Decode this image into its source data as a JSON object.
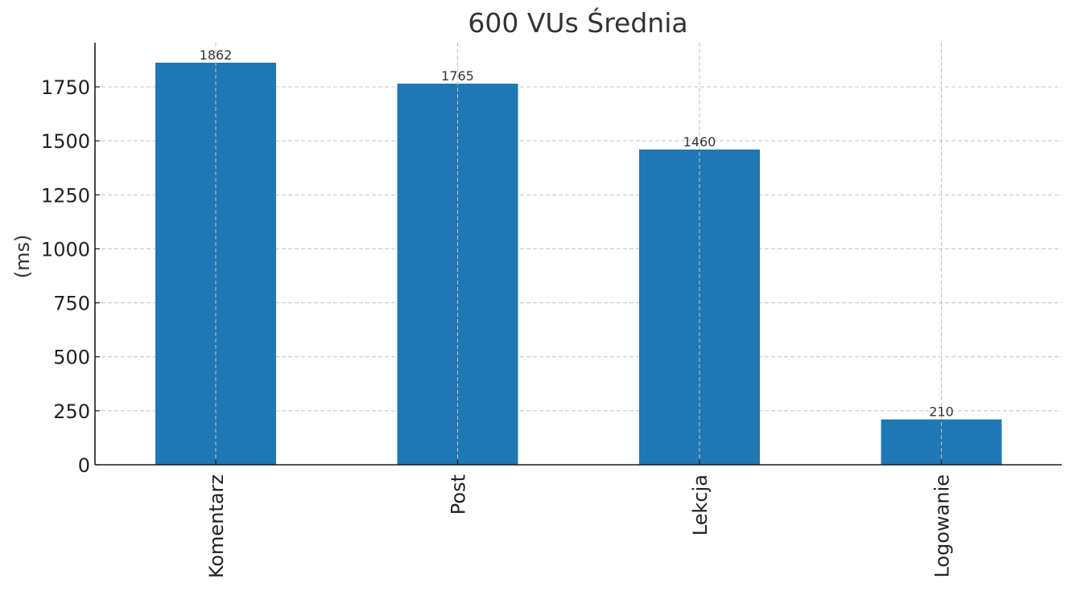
{
  "chart_data": {
    "type": "bar",
    "title": "600 VUs Średnia",
    "xlabel": "",
    "ylabel": "(ms)",
    "categories": [
      "Komentarz",
      "Post",
      "Lekcja",
      "Logowanie"
    ],
    "values": [
      1862,
      1765,
      1460,
      210
    ],
    "data_labels": [
      "1862",
      "1765",
      "1460",
      "210"
    ],
    "ylim": [
      0,
      1955
    ],
    "yticks": [
      0,
      250,
      500,
      750,
      1000,
      1250,
      1500,
      1750
    ],
    "ytick_labels": [
      "0",
      "250",
      "500",
      "750",
      "1000",
      "1250",
      "1500",
      "1750"
    ],
    "grid": true,
    "bar_color": "#1f77b4"
  }
}
